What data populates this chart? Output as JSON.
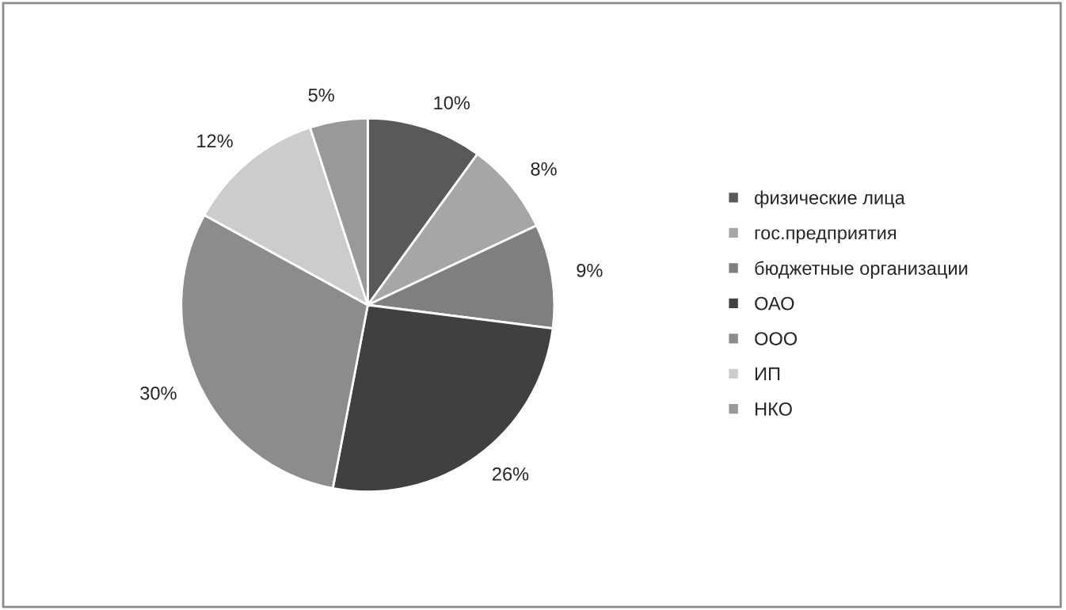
{
  "chart_data": {
    "type": "pie",
    "categories": [
      "физические лица",
      "гос.предприятия",
      "бюджетные организации",
      "ОАО",
      "ООО",
      "ИП",
      "НКО"
    ],
    "values": [
      10,
      8,
      9,
      26,
      30,
      12,
      5
    ],
    "value_labels": [
      "10%",
      "8%",
      "9%",
      "26%",
      "30%",
      "12%",
      "5%"
    ],
    "colors": [
      "#595959",
      "#a6a6a6",
      "#7f7f7f",
      "#404040",
      "#8c8c8c",
      "#cccccc",
      "#999999"
    ],
    "legend": "right"
  }
}
